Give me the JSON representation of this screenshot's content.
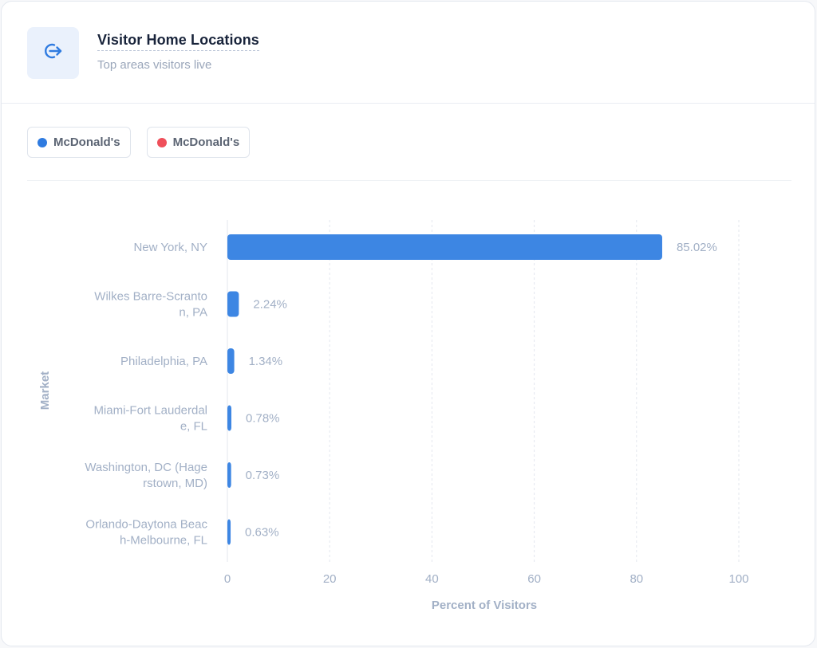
{
  "header": {
    "icon": "arrow-right-from-circle-icon",
    "title": "Visitor Home Locations",
    "subtitle": "Top areas visitors live"
  },
  "legend": [
    {
      "label": "McDonald's",
      "color": "#2f7be0"
    },
    {
      "label": "McDonald's",
      "color": "#ef4f5a"
    }
  ],
  "colors": {
    "bar": "#3d86e3",
    "axis_text": "#a2b0c6",
    "grid": "#e3e7ee"
  },
  "chart_data": {
    "type": "bar",
    "orientation": "horizontal",
    "categories": [
      [
        "New York, NY"
      ],
      [
        "Wilkes Barre-Scranto",
        "n, PA"
      ],
      [
        "Philadelphia, PA"
      ],
      [
        "Miami-Fort Lauderdal",
        "e, FL"
      ],
      [
        "Washington, DC (Hage",
        "rstown, MD)"
      ],
      [
        "Orlando-Daytona Beac",
        "h-Melbourne, FL"
      ]
    ],
    "values": [
      85.02,
      2.24,
      1.34,
      0.78,
      0.73,
      0.63
    ],
    "value_labels": [
      "85.02%",
      "2.24%",
      "1.34%",
      "0.78%",
      "0.73%",
      "0.63%"
    ],
    "xlabel": "Percent of Visitors",
    "ylabel": "Market",
    "xlim": [
      0,
      100
    ],
    "xticks": [
      0,
      20,
      40,
      60,
      80,
      100
    ],
    "grid": true
  }
}
